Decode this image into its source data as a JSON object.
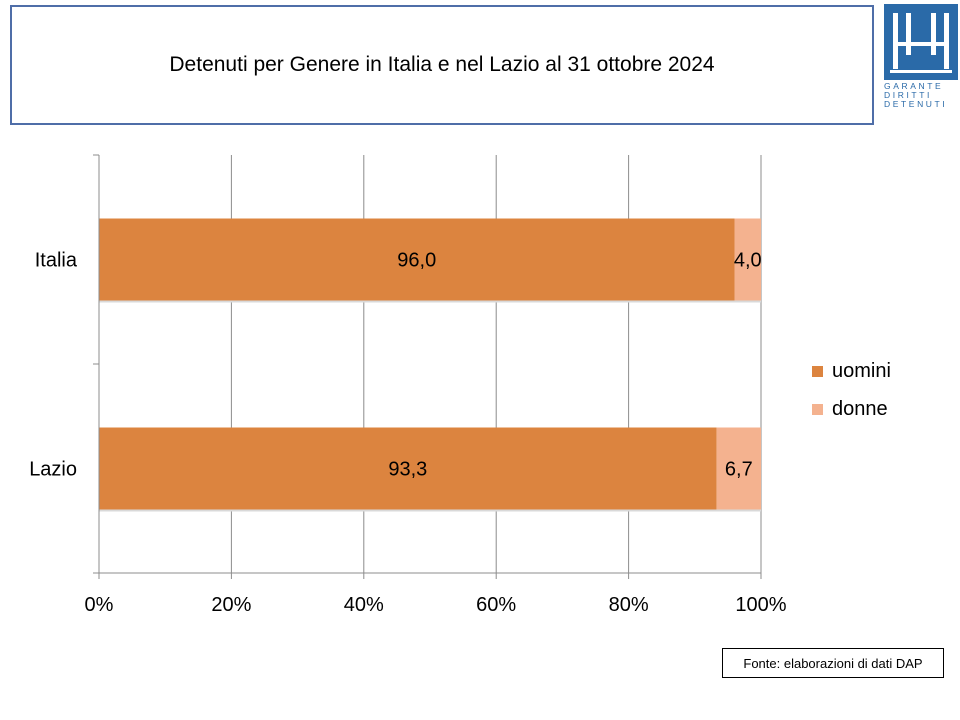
{
  "title": "Detenuti per Genere in Italia e nel Lazio al 31 ottobre 2024",
  "logo": {
    "lines": [
      "GARANTE",
      "DIRITTI",
      "DETENUTI"
    ],
    "color": "#2a6aa8"
  },
  "source_note": "Fonte: elaborazioni di dati DAP",
  "chart_data": {
    "type": "bar",
    "orientation": "horizontal",
    "stacked": "percent",
    "categories": [
      "Italia",
      "Lazio"
    ],
    "series": [
      {
        "name": "uomini",
        "values": [
          96.0,
          93.3
        ],
        "labels": [
          "96,0",
          "93,3"
        ],
        "color": "#dc843f"
      },
      {
        "name": "donne",
        "values": [
          4.0,
          6.7
        ],
        "labels": [
          "4,0",
          "6,7"
        ],
        "color": "#f4b28f"
      }
    ],
    "x_ticks": [
      "0%",
      "20%",
      "40%",
      "60%",
      "80%",
      "100%"
    ],
    "xlim": [
      0,
      100
    ],
    "grid": true,
    "legend": "right"
  }
}
